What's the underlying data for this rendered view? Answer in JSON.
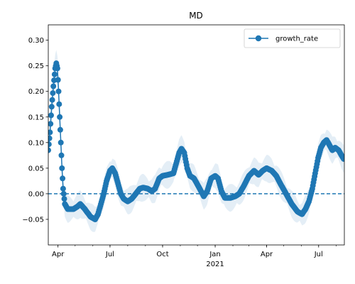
{
  "chart_data": {
    "type": "line",
    "title": "MD",
    "xlabel": "",
    "ylabel": "",
    "xlim": [
      "2020-03-15",
      "2021-08-15"
    ],
    "ylim": [
      -0.1,
      0.33
    ],
    "x_ticks": [
      {
        "date": "2020-04-01",
        "label": "Apr"
      },
      {
        "date": "2020-07-01",
        "label": "Jul"
      },
      {
        "date": "2020-10-01",
        "label": "Oct"
      },
      {
        "date": "2021-01-01",
        "label": "Jan",
        "sublabel": "2021"
      },
      {
        "date": "2021-04-01",
        "label": "Apr"
      },
      {
        "date": "2021-07-01",
        "label": "Jul"
      }
    ],
    "y_ticks": [
      {
        "value": -0.05,
        "label": "−0.05"
      },
      {
        "value": 0.0,
        "label": "0.00"
      },
      {
        "value": 0.05,
        "label": "0.05"
      },
      {
        "value": 0.1,
        "label": "0.10"
      },
      {
        "value": 0.15,
        "label": "0.15"
      },
      {
        "value": 0.2,
        "label": "0.20"
      },
      {
        "value": 0.25,
        "label": "0.25"
      },
      {
        "value": 0.3,
        "label": "0.30"
      }
    ],
    "legend": {
      "position": "top-right"
    },
    "reference_line": {
      "y": 0.0,
      "style": "dashed",
      "color": "#1f77b4"
    },
    "band_color": "#1f77b4",
    "grid": false,
    "series": [
      {
        "name": "growth_rate",
        "color": "#1f77b4",
        "marker": "circle",
        "band_half_width": 0.015,
        "knots": [
          [
            "2020-03-15",
            0.085
          ],
          [
            "2020-03-18",
            0.12
          ],
          [
            "2020-03-21",
            0.17
          ],
          [
            "2020-03-24",
            0.21
          ],
          [
            "2020-03-27",
            0.245
          ],
          [
            "2020-03-29",
            0.255
          ],
          [
            "2020-03-31",
            0.245
          ],
          [
            "2020-04-02",
            0.2
          ],
          [
            "2020-04-04",
            0.15
          ],
          [
            "2020-04-06",
            0.1
          ],
          [
            "2020-04-08",
            0.05
          ],
          [
            "2020-04-10",
            0.01
          ],
          [
            "2020-04-13",
            -0.02
          ],
          [
            "2020-04-18",
            -0.03
          ],
          [
            "2020-04-28",
            -0.03
          ],
          [
            "2020-05-05",
            -0.025
          ],
          [
            "2020-05-10",
            -0.02
          ],
          [
            "2020-05-18",
            -0.03
          ],
          [
            "2020-05-28",
            -0.045
          ],
          [
            "2020-06-05",
            -0.05
          ],
          [
            "2020-06-10",
            -0.04
          ],
          [
            "2020-06-15",
            -0.02
          ],
          [
            "2020-06-20",
            0.0
          ],
          [
            "2020-06-25",
            0.025
          ],
          [
            "2020-07-01",
            0.045
          ],
          [
            "2020-07-05",
            0.05
          ],
          [
            "2020-07-10",
            0.04
          ],
          [
            "2020-07-15",
            0.02
          ],
          [
            "2020-07-20",
            0.0
          ],
          [
            "2020-07-25",
            -0.01
          ],
          [
            "2020-08-01",
            -0.015
          ],
          [
            "2020-08-08",
            -0.01
          ],
          [
            "2020-08-15",
            0.0
          ],
          [
            "2020-08-22",
            0.01
          ],
          [
            "2020-08-28",
            0.012
          ],
          [
            "2020-09-05",
            0.01
          ],
          [
            "2020-09-12",
            0.005
          ],
          [
            "2020-09-18",
            0.01
          ],
          [
            "2020-09-25",
            0.03
          ],
          [
            "2020-10-01",
            0.035
          ],
          [
            "2020-10-10",
            0.037
          ],
          [
            "2020-10-20",
            0.04
          ],
          [
            "2020-10-25",
            0.06
          ],
          [
            "2020-10-30",
            0.08
          ],
          [
            "2020-11-03",
            0.088
          ],
          [
            "2020-11-08",
            0.08
          ],
          [
            "2020-11-13",
            0.05
          ],
          [
            "2020-11-18",
            0.035
          ],
          [
            "2020-11-25",
            0.03
          ],
          [
            "2020-12-05",
            0.01
          ],
          [
            "2020-12-12",
            -0.005
          ],
          [
            "2020-12-18",
            0.005
          ],
          [
            "2020-12-25",
            0.03
          ],
          [
            "2021-01-01",
            0.035
          ],
          [
            "2021-01-06",
            0.03
          ],
          [
            "2021-01-12",
            0.005
          ],
          [
            "2021-01-18",
            -0.008
          ],
          [
            "2021-01-28",
            -0.008
          ],
          [
            "2021-02-05",
            -0.005
          ],
          [
            "2021-02-12",
            0.0
          ],
          [
            "2021-02-20",
            0.015
          ],
          [
            "2021-03-01",
            0.035
          ],
          [
            "2021-03-10",
            0.045
          ],
          [
            "2021-03-18",
            0.037
          ],
          [
            "2021-03-25",
            0.045
          ],
          [
            "2021-04-01",
            0.05
          ],
          [
            "2021-04-10",
            0.045
          ],
          [
            "2021-04-18",
            0.035
          ],
          [
            "2021-04-25",
            0.02
          ],
          [
            "2021-05-05",
            0.0
          ],
          [
            "2021-05-15",
            -0.02
          ],
          [
            "2021-05-25",
            -0.035
          ],
          [
            "2021-06-02",
            -0.04
          ],
          [
            "2021-06-08",
            -0.03
          ],
          [
            "2021-06-14",
            -0.015
          ],
          [
            "2021-06-20",
            0.01
          ],
          [
            "2021-06-25",
            0.04
          ],
          [
            "2021-06-30",
            0.07
          ],
          [
            "2021-07-05",
            0.09
          ],
          [
            "2021-07-10",
            0.1
          ],
          [
            "2021-07-15",
            0.105
          ],
          [
            "2021-07-20",
            0.095
          ],
          [
            "2021-07-25",
            0.085
          ],
          [
            "2021-07-30",
            0.09
          ],
          [
            "2021-08-05",
            0.085
          ],
          [
            "2021-08-10",
            0.075
          ],
          [
            "2021-08-14",
            0.068
          ]
        ]
      }
    ]
  }
}
